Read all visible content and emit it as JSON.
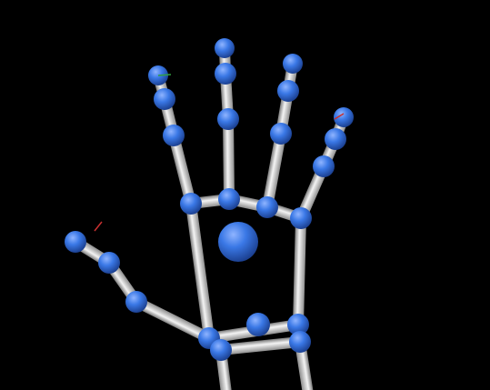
{
  "scene": {
    "background_color": "#000000",
    "bone_color": "#d8d8d8",
    "joint_color": "#2f6fe0",
    "palm_center_color": "#2a63d6",
    "axis_colors": {
      "x": "#c83030",
      "y": "#30a040"
    },
    "model": "hand-skeleton"
  }
}
